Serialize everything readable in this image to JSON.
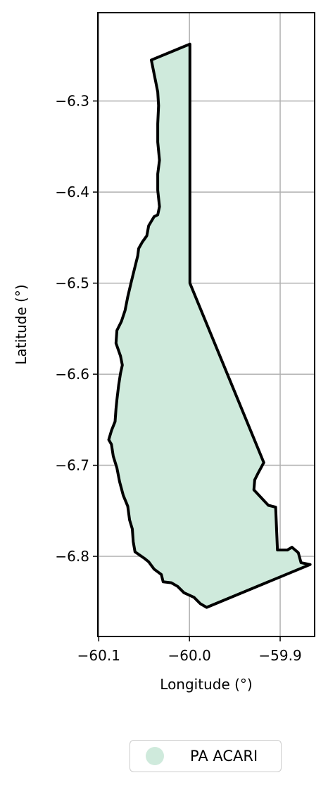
{
  "chart_data": {
    "type": "map",
    "xlabel": "Longitude (°)",
    "ylabel": "Latitude (°)",
    "xlim": [
      -60.101,
      -59.862
    ],
    "ylim": [
      -6.888,
      -6.203
    ],
    "x_ticks": [
      {
        "value": -60.1,
        "label": "−60.1"
      },
      {
        "value": -60.0,
        "label": "−60.0"
      },
      {
        "value": -59.9,
        "label": "−59.9"
      }
    ],
    "y_ticks": [
      {
        "value": -6.3,
        "label": "−6.3"
      },
      {
        "value": -6.4,
        "label": "−6.4"
      },
      {
        "value": -6.5,
        "label": "−6.5"
      },
      {
        "value": -6.6,
        "label": "−6.6"
      },
      {
        "value": -6.7,
        "label": "−6.7"
      },
      {
        "value": -6.8,
        "label": "−6.8"
      }
    ],
    "grid": true,
    "legend_position": "bottom-center",
    "series": [
      {
        "name": "PA ACARI",
        "color": "#cfeadc",
        "edge_color": "#000000",
        "polygon": [
          [
            -59.9995,
            -6.2375
          ],
          [
            -59.9995,
            -6.5
          ],
          [
            -59.918,
            -6.697
          ],
          [
            -59.924,
            -6.708
          ],
          [
            -59.928,
            -6.716
          ],
          [
            -59.929,
            -6.727
          ],
          [
            -59.913,
            -6.744
          ],
          [
            -59.905,
            -6.746
          ],
          [
            -59.903,
            -6.793
          ],
          [
            -59.892,
            -6.793
          ],
          [
            -59.887,
            -6.79
          ],
          [
            -59.88,
            -6.796
          ],
          [
            -59.877,
            -6.807
          ],
          [
            -59.867,
            -6.809
          ],
          [
            -59.981,
            -6.856
          ],
          [
            -59.988,
            -6.852
          ],
          [
            -59.995,
            -6.845
          ],
          [
            -60.006,
            -6.84
          ],
          [
            -60.013,
            -6.833
          ],
          [
            -60.02,
            -6.829
          ],
          [
            -60.029,
            -6.828
          ],
          [
            -60.031,
            -6.82
          ],
          [
            -60.039,
            -6.814
          ],
          [
            -60.045,
            -6.806
          ],
          [
            -60.05,
            -6.802
          ],
          [
            -60.06,
            -6.795
          ],
          [
            -60.062,
            -6.784
          ],
          [
            -60.063,
            -6.77
          ],
          [
            -60.066,
            -6.76
          ],
          [
            -60.068,
            -6.745
          ],
          [
            -60.073,
            -6.733
          ],
          [
            -60.077,
            -6.718
          ],
          [
            -60.08,
            -6.703
          ],
          [
            -60.084,
            -6.69
          ],
          [
            -60.086,
            -6.677
          ],
          [
            -60.089,
            -6.672
          ],
          [
            -60.086,
            -6.662
          ],
          [
            -60.082,
            -6.652
          ],
          [
            -60.081,
            -6.638
          ],
          [
            -60.08,
            -6.628
          ],
          [
            -60.078,
            -6.612
          ],
          [
            -60.076,
            -6.599
          ],
          [
            -60.074,
            -6.59
          ],
          [
            -60.076,
            -6.58
          ],
          [
            -60.081,
            -6.566
          ],
          [
            -60.08,
            -6.552
          ],
          [
            -60.075,
            -6.542
          ],
          [
            -60.071,
            -6.53
          ],
          [
            -60.068,
            -6.515
          ],
          [
            -60.064,
            -6.498
          ],
          [
            -60.06,
            -6.482
          ],
          [
            -60.057,
            -6.47
          ],
          [
            -60.056,
            -6.462
          ],
          [
            -60.052,
            -6.455
          ],
          [
            -60.047,
            -6.448
          ],
          [
            -60.045,
            -6.437
          ],
          [
            -60.039,
            -6.427
          ],
          [
            -60.035,
            -6.425
          ],
          [
            -60.033,
            -6.416
          ],
          [
            -60.035,
            -6.398
          ],
          [
            -60.035,
            -6.38
          ],
          [
            -60.033,
            -6.365
          ],
          [
            -60.035,
            -6.345
          ],
          [
            -60.035,
            -6.325
          ],
          [
            -60.034,
            -6.305
          ],
          [
            -60.035,
            -6.29
          ],
          [
            -60.037,
            -6.28
          ],
          [
            -60.04,
            -6.265
          ],
          [
            -60.042,
            -6.255
          ]
        ]
      }
    ]
  }
}
